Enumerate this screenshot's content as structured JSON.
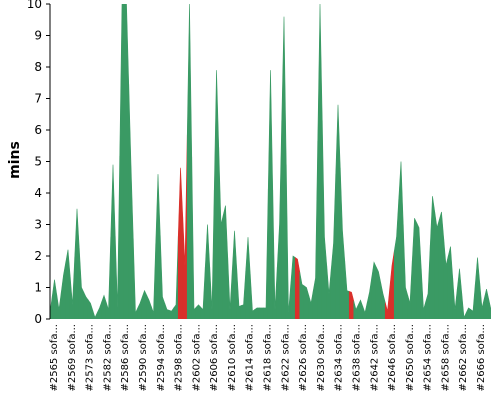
{
  "chart_data": {
    "type": "area",
    "ylabel": "mins",
    "ylim": [
      0,
      10
    ],
    "yticks": [
      0,
      1,
      2,
      3,
      4,
      5,
      6,
      7,
      8,
      9,
      10
    ],
    "grid": false,
    "colors": {
      "pass": "#3a9a64",
      "fail": "#d9302b"
    },
    "x_labels": [
      "#2565 sofa...",
      "#2569 sofa...",
      "#2573 sofa...",
      "#2582 sofa...",
      "#2586 sofa...",
      "#2590 sofa...",
      "#2594 sofa...",
      "#2598 sofa...",
      "#2602 sofa...",
      "#2606 sofa...",
      "#2610 sofa...",
      "#2614 sofa...",
      "#2618 sofa...",
      "#2622 sofa...",
      "#2626 sofa...",
      "#2630 sofa...",
      "#2634 sofa...",
      "#2638 sofa...",
      "#2642 sofa...",
      "#2646 sofa...",
      "#2650 sofa...",
      "#2654 sofa...",
      "#2658 sofa...",
      "#2662 sofa...",
      "#2666 sofa..."
    ],
    "values": [
      0.2,
      1.25,
      0.3,
      1.4,
      2.2,
      0.45,
      3.5,
      1.0,
      0.7,
      0.5,
      0.05,
      0.35,
      0.75,
      0.3,
      4.9,
      0.35,
      10.0,
      10.0,
      4.9,
      0.2,
      0.5,
      0.9,
      0.6,
      0.2,
      4.6,
      0.7,
      0.3,
      0.25,
      0.45,
      4.8,
      1.7,
      10.0,
      0.3,
      0.45,
      0.3,
      3.0,
      0.3,
      7.9,
      3.0,
      3.6,
      0.3,
      2.8,
      0.4,
      0.45,
      2.6,
      0.25,
      0.35,
      0.35,
      0.35,
      7.9,
      0.3,
      3.0,
      9.6,
      0.2,
      2.0,
      1.9,
      1.1,
      1.0,
      0.5,
      1.3,
      10.0,
      2.6,
      0.8,
      2.4,
      6.8,
      2.8,
      0.9,
      0.85,
      0.3,
      0.6,
      0.2,
      0.85,
      1.8,
      1.5,
      0.8,
      0.25,
      1.7,
      2.6,
      5.0,
      1.0,
      0.5,
      3.2,
      2.9,
      0.3,
      0.8,
      3.9,
      2.9,
      3.4,
      1.7,
      2.3,
      0.3,
      1.6,
      0.05,
      0.35,
      0.25,
      1.95,
      0.35,
      0.95,
      0.3
    ],
    "fail_runs": [
      29,
      30,
      55,
      67,
      75,
      76
    ]
  }
}
